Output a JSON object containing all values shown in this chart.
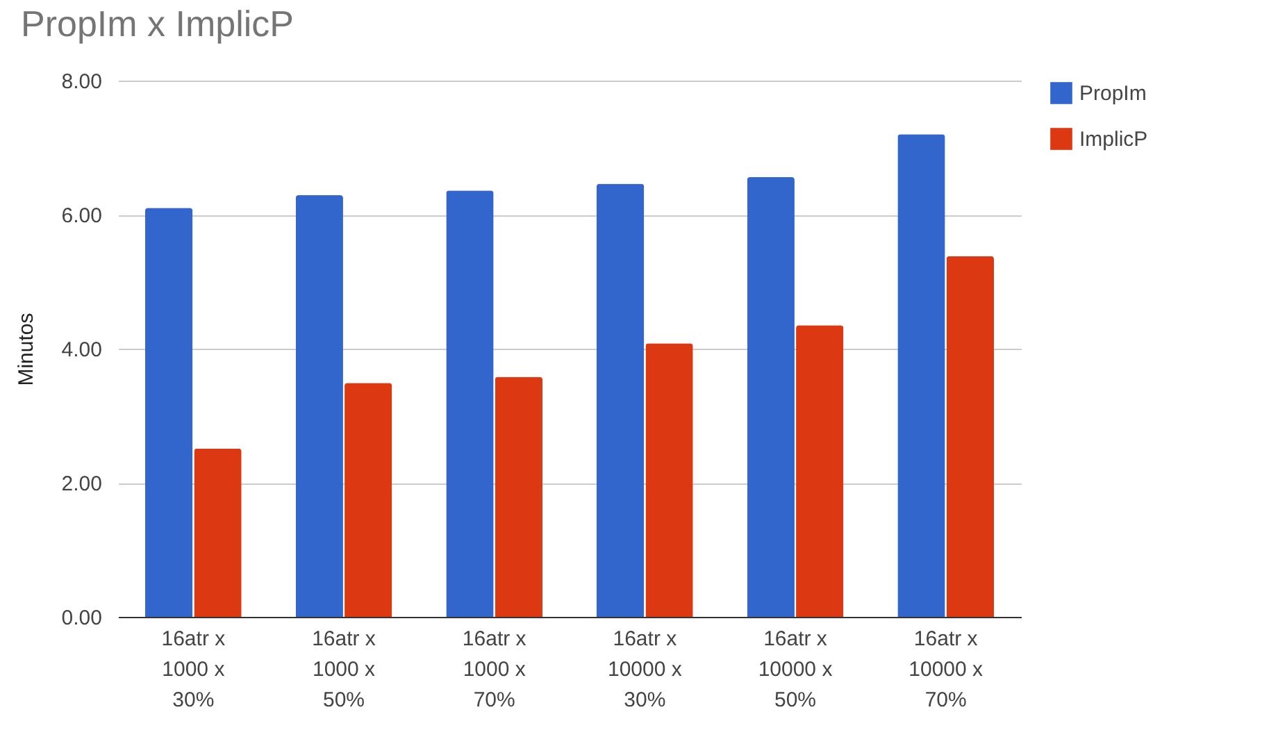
{
  "chart_data": {
    "type": "bar",
    "title": "PropIm x ImplicP",
    "ylabel": "Minutos",
    "categories": [
      "16atr x 1000 x 30%",
      "16atr x 1000 x 50%",
      "16atr x 1000 x 70%",
      "16atr x 10000 x 30%",
      "16atr x 10000 x 50%",
      "16atr x 10000 x 70%"
    ],
    "series": [
      {
        "name": "PropIm",
        "color": "#3366cc",
        "values": [
          6.1,
          6.29,
          6.36,
          6.46,
          6.56,
          7.2
        ]
      },
      {
        "name": "ImplicP",
        "color": "#dc3912",
        "values": [
          2.51,
          3.49,
          3.58,
          4.08,
          4.35,
          5.38
        ]
      }
    ],
    "ylim": [
      0,
      8
    ],
    "yticks": [
      {
        "value": 0,
        "label": "0.00"
      },
      {
        "value": 2,
        "label": "2.00"
      },
      {
        "value": 4,
        "label": "4.00"
      },
      {
        "value": 6,
        "label": "6.00"
      },
      {
        "value": 8,
        "label": "8.00"
      }
    ],
    "grid": "y",
    "legend": "top right"
  }
}
